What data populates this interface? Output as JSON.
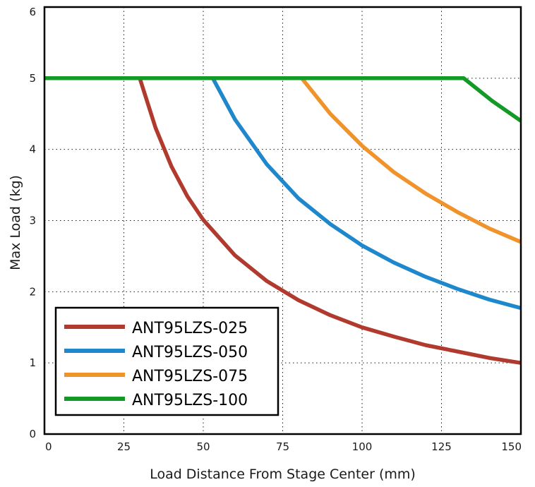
{
  "chart_data": {
    "type": "line",
    "title": "",
    "xlabel": "Load Distance From Stage Center (mm)",
    "ylabel": "Max Load (kg)",
    "xlim": [
      0,
      150
    ],
    "ylim": [
      0,
      6
    ],
    "xticks": [
      "0",
      "25",
      "50",
      "75",
      "100",
      "125",
      "150"
    ],
    "yticks": [
      "0",
      "1",
      "2",
      "3",
      "4",
      "5",
      "6"
    ],
    "grid": true,
    "legend": "bottom-left",
    "series": [
      {
        "name": "ANT95LZS-025",
        "color": "#b03a2e",
        "points": [
          [
            0,
            5
          ],
          [
            30,
            5
          ],
          [
            35,
            4.3
          ],
          [
            40,
            3.76
          ],
          [
            45,
            3.34
          ],
          [
            50,
            3.01
          ],
          [
            60,
            2.51
          ],
          [
            70,
            2.15
          ],
          [
            80,
            1.88
          ],
          [
            90,
            1.67
          ],
          [
            100,
            1.5
          ],
          [
            110,
            1.37
          ],
          [
            120,
            1.25
          ],
          [
            130,
            1.16
          ],
          [
            140,
            1.07
          ],
          [
            150,
            1.0
          ]
        ]
      },
      {
        "name": "ANT95LZS-050",
        "color": "#1f88cc",
        "points": [
          [
            0,
            5
          ],
          [
            53,
            5
          ],
          [
            60,
            4.42
          ],
          [
            70,
            3.79
          ],
          [
            80,
            3.31
          ],
          [
            90,
            2.95
          ],
          [
            100,
            2.65
          ],
          [
            110,
            2.41
          ],
          [
            120,
            2.21
          ],
          [
            130,
            2.04
          ],
          [
            140,
            1.89
          ],
          [
            150,
            1.77
          ]
        ]
      },
      {
        "name": "ANT95LZS-075",
        "color": "#f0932b",
        "points": [
          [
            0,
            5
          ],
          [
            81,
            5
          ],
          [
            90,
            4.5
          ],
          [
            100,
            4.05
          ],
          [
            110,
            3.68
          ],
          [
            120,
            3.38
          ],
          [
            130,
            3.12
          ],
          [
            140,
            2.89
          ],
          [
            150,
            2.7
          ]
        ]
      },
      {
        "name": "ANT95LZS-100",
        "color": "#139a26",
        "points": [
          [
            0,
            5
          ],
          [
            132,
            5
          ],
          [
            141,
            4.68
          ],
          [
            150,
            4.4
          ]
        ]
      }
    ]
  }
}
